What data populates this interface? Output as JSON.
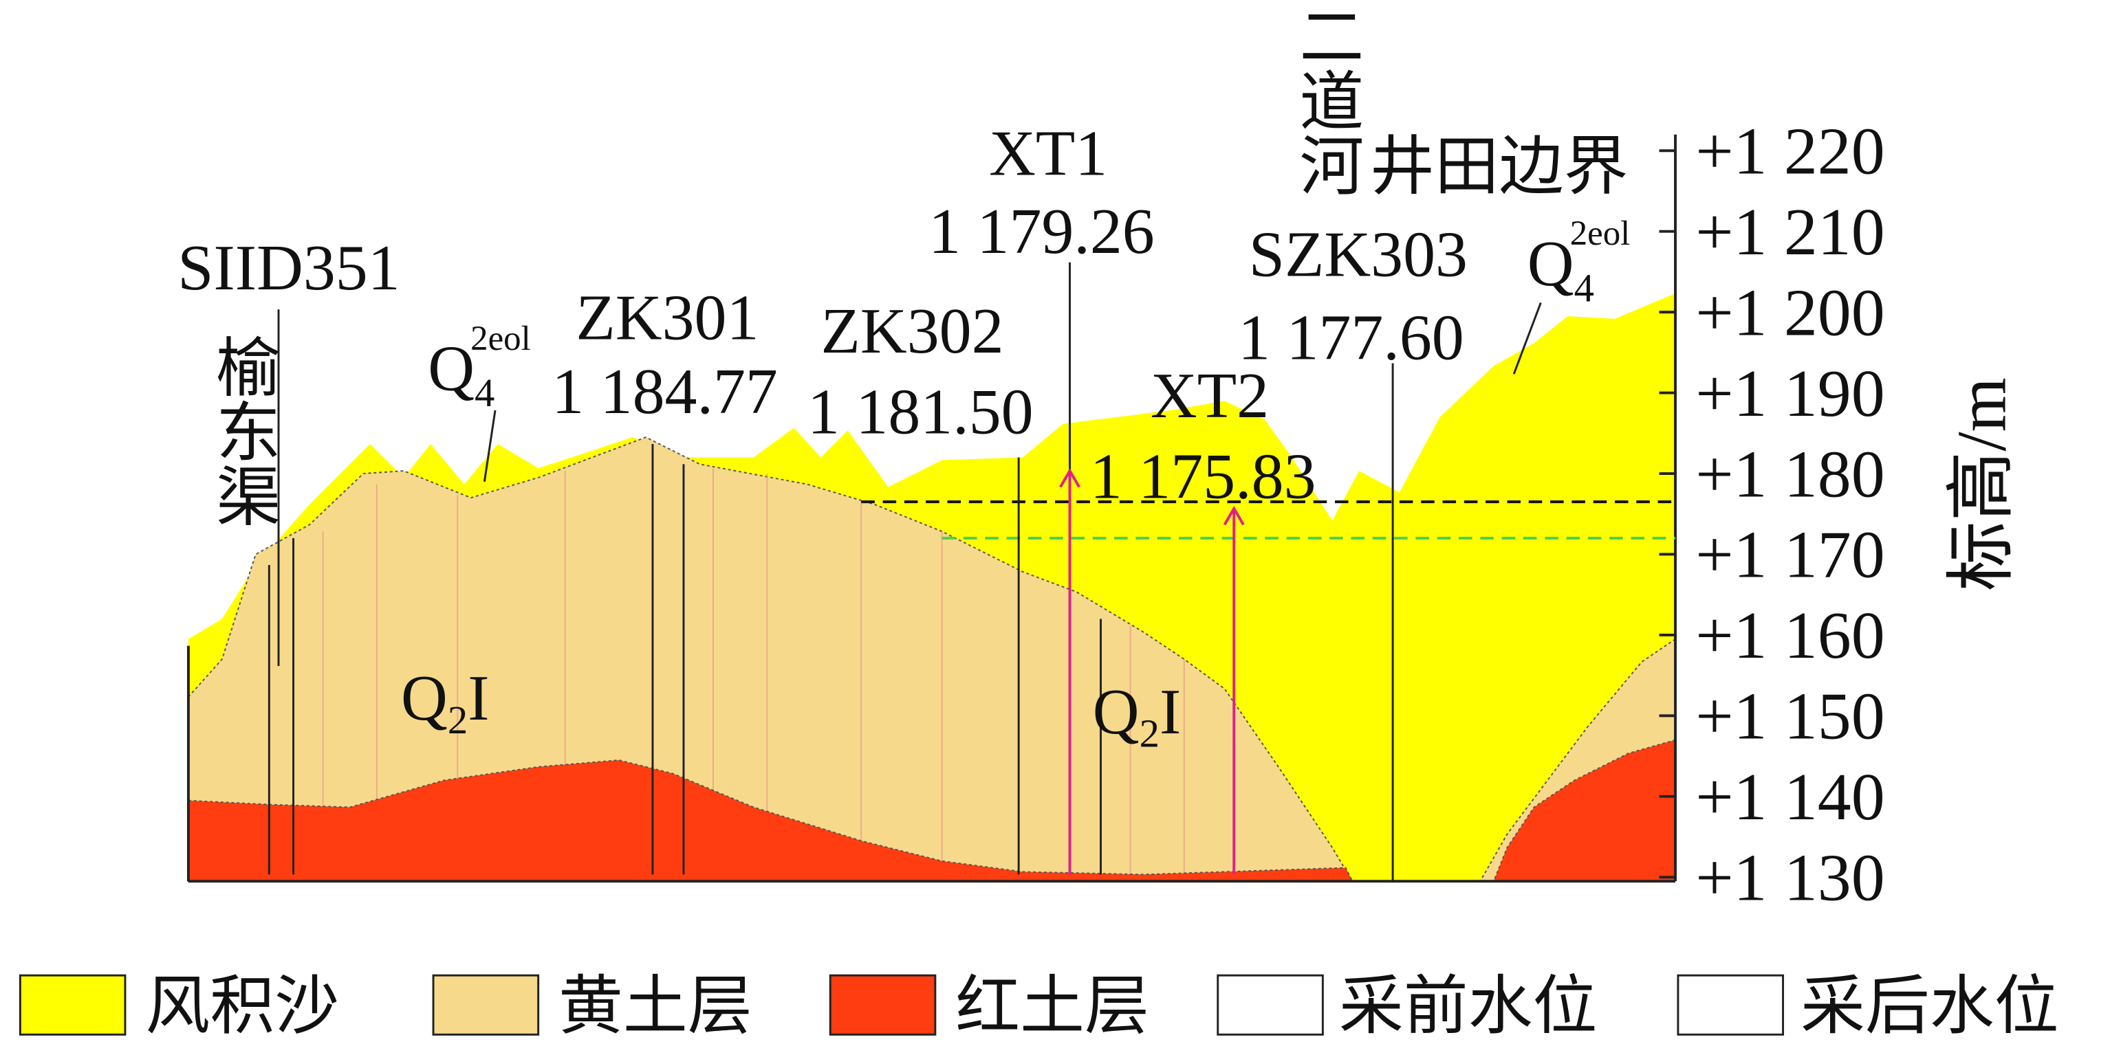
{
  "axis": {
    "title": "标高/m",
    "ticks": [
      "+1 220",
      "+1 210",
      "+1 200",
      "+1 190",
      "+1 180",
      "+1 170",
      "+1 160",
      "+1 150",
      "+1 140",
      "+1 130"
    ]
  },
  "boreholes": [
    {
      "name": "SIID351"
    },
    {
      "name": "ZK301",
      "elevation": "1 184.77"
    },
    {
      "name": "ZK302",
      "elevation": "1 181.50"
    },
    {
      "name": "XT1",
      "elevation": "1 179.26"
    },
    {
      "name": "XT2",
      "elevation": "1 175.83"
    },
    {
      "name": "SZK303",
      "elevation": "1 177.60"
    }
  ],
  "places": {
    "left_channel": "榆东渠",
    "river": "二道河",
    "boundary": "井田边界"
  },
  "strata": {
    "q4_left": {
      "base": "Q",
      "sub": "4",
      "sup": "2eol"
    },
    "q4_right": {
      "base": "Q",
      "sub": "4",
      "sup": "2eol"
    },
    "q2_left": {
      "base": "Q",
      "sub": "2",
      "tail": "I"
    },
    "q2_right": {
      "base": "Q",
      "sub": "2",
      "tail": "I"
    }
  },
  "legend": [
    "风积沙",
    "黄土层",
    "红土层",
    "采前水位",
    "采后水位"
  ]
}
